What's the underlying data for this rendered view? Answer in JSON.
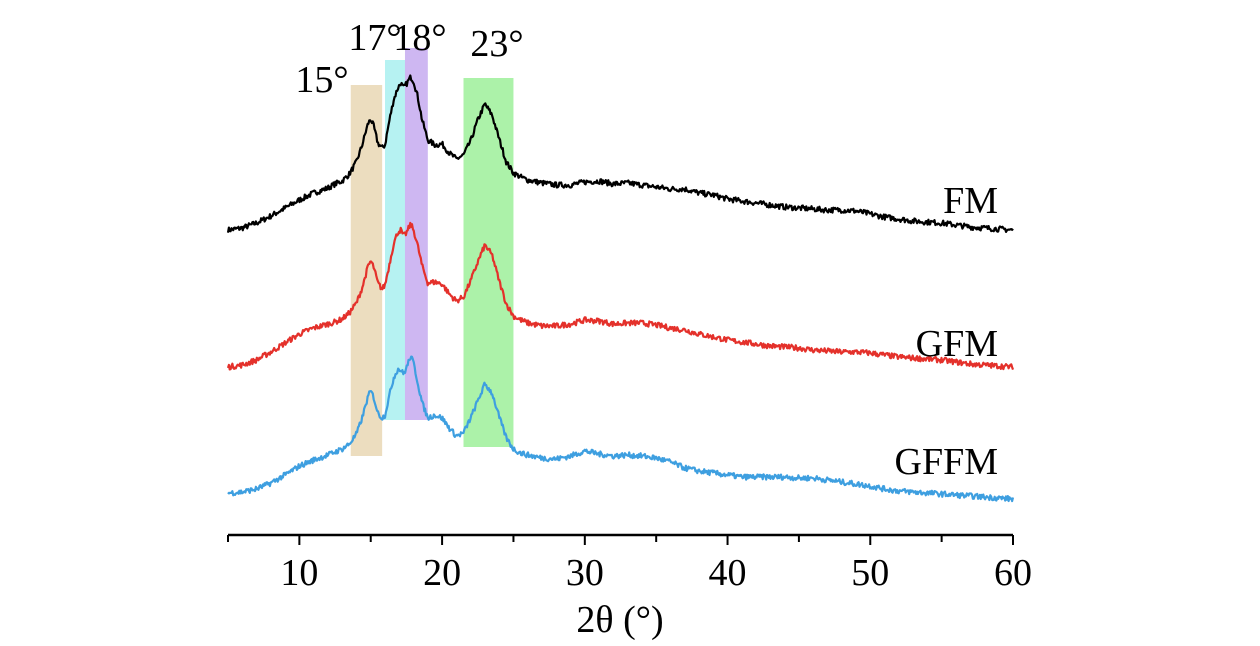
{
  "chart_data": {
    "type": "line",
    "title": "",
    "xlabel": "2θ (°)",
    "ylabel": "",
    "xlim": [
      5,
      60
    ],
    "x_ticks": [
      10,
      20,
      30,
      40,
      50,
      60
    ],
    "x_tick_labels": [
      "10",
      "20",
      "30",
      "40",
      "50",
      "60"
    ],
    "y_axis_shown": false,
    "grid": false,
    "highlight_bands": [
      {
        "label": "15°",
        "x_range": [
          13.6,
          15.8
        ],
        "color": "#e9d7b4",
        "covers": [
          "FM",
          "GFM",
          "GFFM"
        ]
      },
      {
        "label": "17°",
        "x_range": [
          16.0,
          17.4
        ],
        "color": "#a9f0f0",
        "covers": [
          "FM",
          "GFM"
        ]
      },
      {
        "label": "18°",
        "x_range": [
          17.4,
          19.0
        ],
        "color": "#c6aaf0",
        "covers": [
          "FM",
          "GFM"
        ]
      },
      {
        "label": "23°",
        "x_range": [
          21.5,
          25.0
        ],
        "color": "#9df09a",
        "covers": [
          "FM",
          "GFM",
          "GFFM"
        ]
      }
    ],
    "series": [
      {
        "name": "FM",
        "color": "#000000",
        "x": [
          5,
          6,
          7,
          8,
          9,
          10,
          11,
          12,
          12.5,
          13,
          13.5,
          14,
          14.4,
          14.8,
          15,
          15.2,
          15.5,
          15.8,
          16.0,
          16.3,
          16.6,
          16.9,
          17.1,
          17.3,
          17.5,
          17.8,
          18.0,
          18.3,
          18.6,
          19.0,
          19.5,
          20,
          20.5,
          21,
          21.5,
          22.0,
          22.5,
          23.0,
          23.5,
          24.0,
          24.5,
          25.0,
          25.5,
          26,
          27,
          28,
          29,
          30,
          31,
          32,
          33,
          34,
          35,
          36,
          37,
          38,
          39,
          40,
          41,
          42,
          43,
          44,
          45,
          46,
          47,
          48,
          49,
          50,
          51,
          52,
          53,
          54,
          55,
          56,
          57,
          58,
          59,
          60
        ],
        "y": [
          0.4,
          0.8,
          1.8,
          3.2,
          4.8,
          6.4,
          7.8,
          8.8,
          9.6,
          10.2,
          11.6,
          14,
          17.4,
          21.6,
          22.6,
          21.2,
          17.8,
          16.8,
          17.4,
          22.2,
          26.4,
          28.8,
          29.8,
          28.8,
          29.6,
          31.0,
          30.2,
          27.0,
          22.4,
          18.4,
          17.4,
          17.6,
          15.8,
          14.6,
          15.4,
          18.2,
          22.4,
          25.6,
          23.4,
          18.6,
          14.0,
          11.8,
          11.0,
          10.4,
          9.8,
          9.4,
          9.4,
          10.0,
          10.2,
          9.6,
          9.8,
          9.4,
          9.0,
          8.6,
          8.6,
          7.8,
          7.4,
          6.6,
          6.2,
          5.8,
          5.4,
          5.0,
          4.8,
          4.6,
          4.4,
          4.4,
          4.2,
          3.6,
          3.0,
          2.6,
          2.2,
          2.0,
          1.8,
          1.4,
          1.0,
          0.8,
          0.6,
          0.4
        ]
      },
      {
        "name": "GFM",
        "color": "#e4312b",
        "x": [
          5,
          6,
          7,
          8,
          9,
          10,
          11,
          12,
          12.5,
          13,
          13.5,
          14,
          14.4,
          14.8,
          15,
          15.2,
          15.5,
          15.8,
          16.0,
          16.3,
          16.6,
          16.9,
          17.1,
          17.3,
          17.5,
          17.8,
          18.0,
          18.3,
          18.6,
          19.0,
          19.5,
          20,
          20.5,
          21,
          21.5,
          22.0,
          22.5,
          23.0,
          23.5,
          24.0,
          24.5,
          25.0,
          25.5,
          26,
          27,
          28,
          29,
          30,
          31,
          32,
          33,
          34,
          35,
          36,
          37,
          38,
          39,
          40,
          41,
          42,
          43,
          44,
          45,
          46,
          47,
          48,
          49,
          50,
          51,
          52,
          53,
          54,
          55,
          56,
          57,
          58,
          59,
          60
        ],
        "y": [
          0.2,
          0.6,
          1.6,
          3.2,
          5.0,
          6.8,
          8.0,
          8.8,
          9.2,
          9.8,
          11.0,
          13.0,
          16.0,
          20.2,
          21.4,
          20.2,
          17.0,
          15.8,
          16.6,
          20.6,
          24.8,
          27.2,
          27.6,
          26.4,
          27.0,
          28.8,
          27.6,
          24.4,
          20.4,
          17.0,
          17.2,
          16.8,
          14.8,
          13.4,
          14.2,
          17.4,
          21.2,
          24.6,
          22.6,
          17.4,
          12.8,
          10.4,
          9.6,
          9.0,
          8.4,
          8.4,
          8.8,
          9.6,
          9.4,
          8.8,
          9.0,
          9.0,
          8.6,
          8.0,
          7.6,
          6.8,
          6.2,
          5.6,
          5.2,
          4.8,
          4.4,
          4.2,
          4.0,
          3.6,
          3.4,
          3.2,
          3.2,
          3.0,
          2.6,
          2.2,
          2.0,
          1.8,
          1.6,
          1.2,
          0.8,
          0.6,
          0.4,
          0.2
        ]
      },
      {
        "name": "GFFM",
        "color": "#3e9fe0",
        "x": [
          5,
          6,
          7,
          8,
          9,
          10,
          11,
          12,
          12.5,
          13,
          13.5,
          14,
          14.4,
          14.8,
          15,
          15.2,
          15.5,
          15.8,
          16.0,
          16.3,
          16.6,
          16.9,
          17.1,
          17.3,
          17.5,
          17.8,
          18.0,
          18.3,
          18.6,
          19.0,
          19.5,
          20,
          20.5,
          21,
          21.5,
          22.0,
          22.5,
          23.0,
          23.5,
          24.0,
          24.5,
          25.0,
          25.5,
          26,
          27,
          28,
          29,
          30,
          31,
          32,
          33,
          34,
          35,
          36,
          37,
          38,
          39,
          40,
          41,
          42,
          43,
          44,
          45,
          46,
          47,
          48,
          49,
          50,
          51,
          52,
          53,
          54,
          55,
          56,
          57,
          58,
          59,
          60
        ],
        "y": [
          0.4,
          0.6,
          1.2,
          2.4,
          4.0,
          5.8,
          7.0,
          8.0,
          8.6,
          9.2,
          10.2,
          12.2,
          15.4,
          19.6,
          20.8,
          19.6,
          16.4,
          15.4,
          16.0,
          19.8,
          23.4,
          25.2,
          25.0,
          24.2,
          25.4,
          27.8,
          26.4,
          22.4,
          18.4,
          15.4,
          16.0,
          15.4,
          13.4,
          11.8,
          12.4,
          15.4,
          18.8,
          22.2,
          20.4,
          15.6,
          11.4,
          9.2,
          8.4,
          8.0,
          7.4,
          7.2,
          7.8,
          8.8,
          8.2,
          7.8,
          8.0,
          7.8,
          7.4,
          6.6,
          5.4,
          4.8,
          4.4,
          4.0,
          3.6,
          3.6,
          3.6,
          3.6,
          3.4,
          3.4,
          3.0,
          2.6,
          2.2,
          1.8,
          1.2,
          0.8,
          0.6,
          0.4,
          0.2,
          0.0,
          -0.2,
          -0.4,
          -0.6,
          -0.8
        ]
      }
    ]
  }
}
